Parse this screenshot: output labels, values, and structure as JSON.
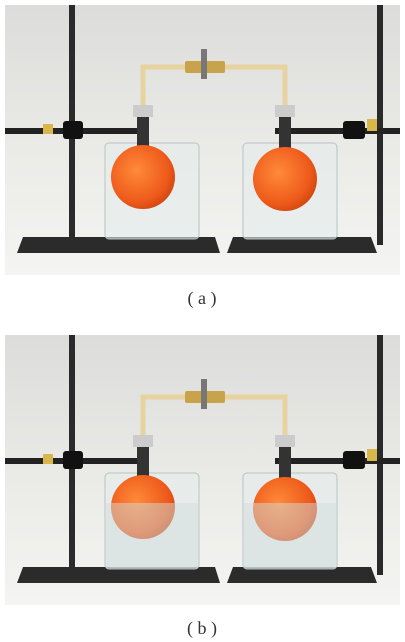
{
  "figures": [
    {
      "caption": "( a )"
    },
    {
      "caption": "( b )"
    }
  ]
}
